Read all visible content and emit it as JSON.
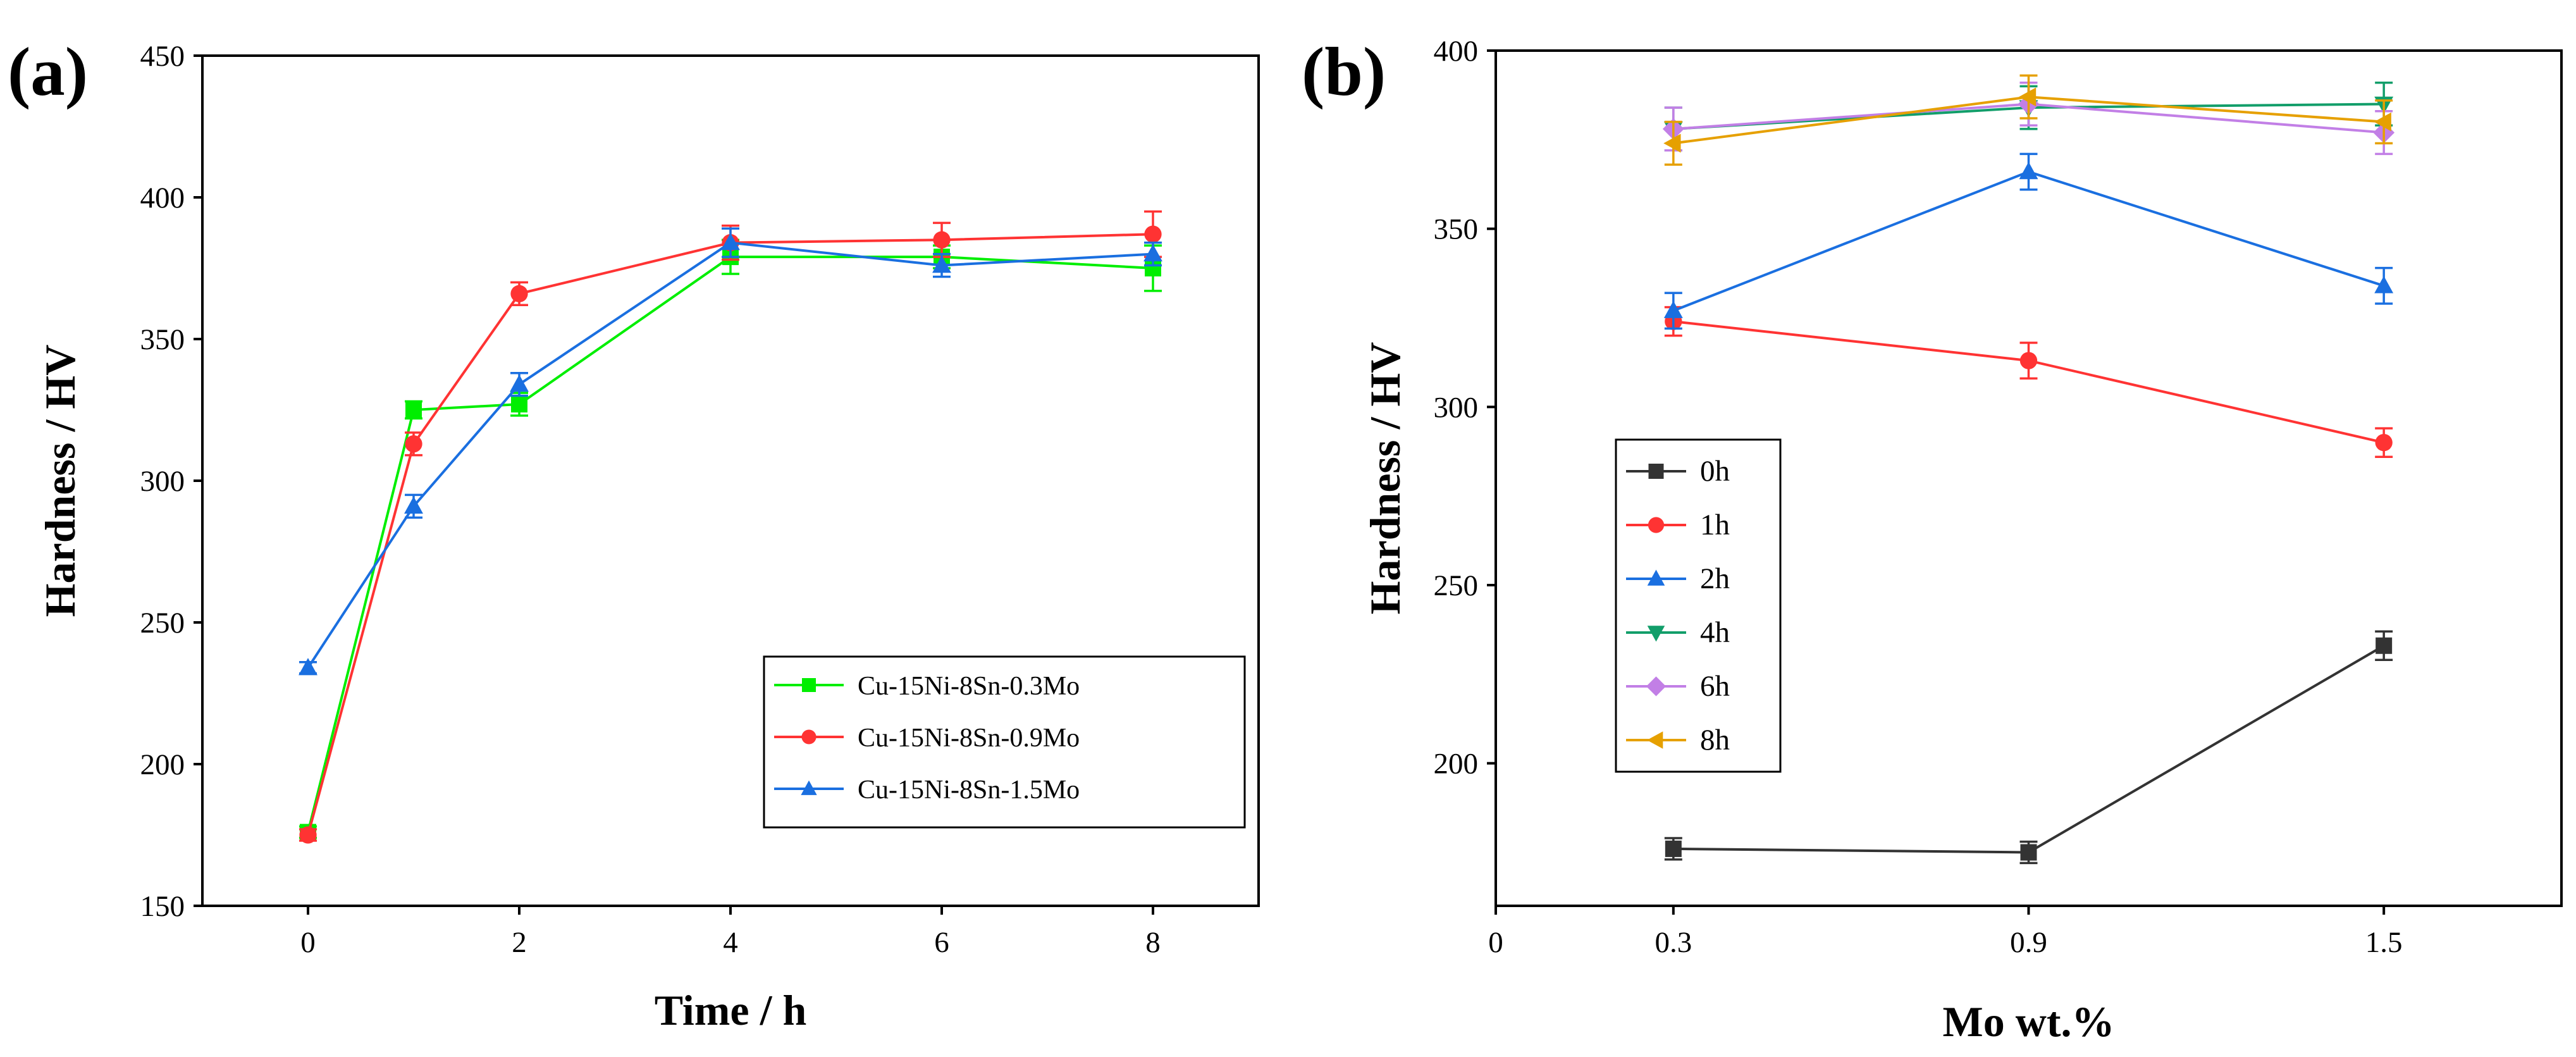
{
  "colors": {
    "green": "#00ee00",
    "red": "#ff3333",
    "blue": "#1a6fe0",
    "black": "#333333",
    "teal": "#129e6a",
    "violet": "#c27fe6",
    "orange": "#e6a000"
  },
  "chart_data": [
    {
      "type": "line",
      "panel_label": "(a)",
      "xlabel": "Time / h",
      "ylabel": "Hardness / HV",
      "xlim": [
        -1,
        9
      ],
      "ylim": [
        150,
        450
      ],
      "xticks": [
        0,
        2,
        4,
        6,
        8
      ],
      "xtick_labels": [
        "0",
        "2",
        "4",
        "6",
        "8"
      ],
      "yticks": [
        150,
        200,
        250,
        300,
        350,
        400,
        450
      ],
      "ytick_labels": [
        "150",
        "200",
        "250",
        "300",
        "350",
        "400",
        "450"
      ],
      "grid": false,
      "legend_position": "bottom-right",
      "x": [
        0,
        1,
        2,
        4,
        6,
        8
      ],
      "series": [
        {
          "name": "Cu-15Ni-8Sn-0.3Mo",
          "color": "green",
          "marker": "square",
          "values": [
            176,
            325,
            327,
            379,
            379,
            375
          ],
          "errors": [
            2,
            3,
            4,
            6,
            4,
            8
          ]
        },
        {
          "name": "Cu-15Ni-8Sn-0.9Mo",
          "color": "red",
          "marker": "circle",
          "values": [
            175,
            313,
            366,
            384,
            385,
            387
          ],
          "errors": [
            2,
            4,
            4,
            6,
            6,
            8
          ]
        },
        {
          "name": "Cu-15Ni-8Sn-1.5Mo",
          "color": "blue",
          "marker": "triangle-up",
          "values": [
            234,
            291,
            334,
            384,
            376,
            380
          ],
          "errors": [
            2,
            4,
            4,
            5,
            4,
            4
          ]
        }
      ]
    },
    {
      "type": "line",
      "panel_label": "(b)",
      "xlabel": "Mo wt.%",
      "ylabel": "Hardness / HV",
      "xlim": [
        0,
        1.8
      ],
      "ylim": [
        160,
        400
      ],
      "xticks": [
        0,
        0.3,
        0.9,
        1.5
      ],
      "xtick_labels": [
        "0",
        "0.3",
        "0.9",
        "1.5"
      ],
      "yticks": [
        200,
        250,
        300,
        350,
        400
      ],
      "ytick_labels": [
        "200",
        "250",
        "300",
        "350",
        "400"
      ],
      "grid": false,
      "legend_position": "center-left",
      "x": [
        0.3,
        0.9,
        1.5
      ],
      "series": [
        {
          "name": "0h",
          "color": "black",
          "marker": "square",
          "values": [
            176,
            175,
            233
          ],
          "errors": [
            3,
            3,
            4
          ]
        },
        {
          "name": "1h",
          "color": "red",
          "marker": "circle",
          "values": [
            324,
            313,
            290
          ],
          "errors": [
            4,
            5,
            4
          ]
        },
        {
          "name": "2h",
          "color": "blue",
          "marker": "triangle-up",
          "values": [
            327,
            366,
            334
          ],
          "errors": [
            5,
            5,
            5
          ]
        },
        {
          "name": "4h",
          "color": "teal",
          "marker": "triangle-down",
          "values": [
            378,
            384,
            385
          ],
          "errors": [
            6,
            6,
            6
          ]
        },
        {
          "name": "6h",
          "color": "violet",
          "marker": "diamond",
          "values": [
            378,
            385,
            377
          ],
          "errors": [
            6,
            6,
            6
          ]
        },
        {
          "name": "8h",
          "color": "orange",
          "marker": "triangle-left",
          "values": [
            374,
            387,
            380
          ],
          "errors": [
            6,
            6,
            6
          ]
        }
      ]
    }
  ]
}
